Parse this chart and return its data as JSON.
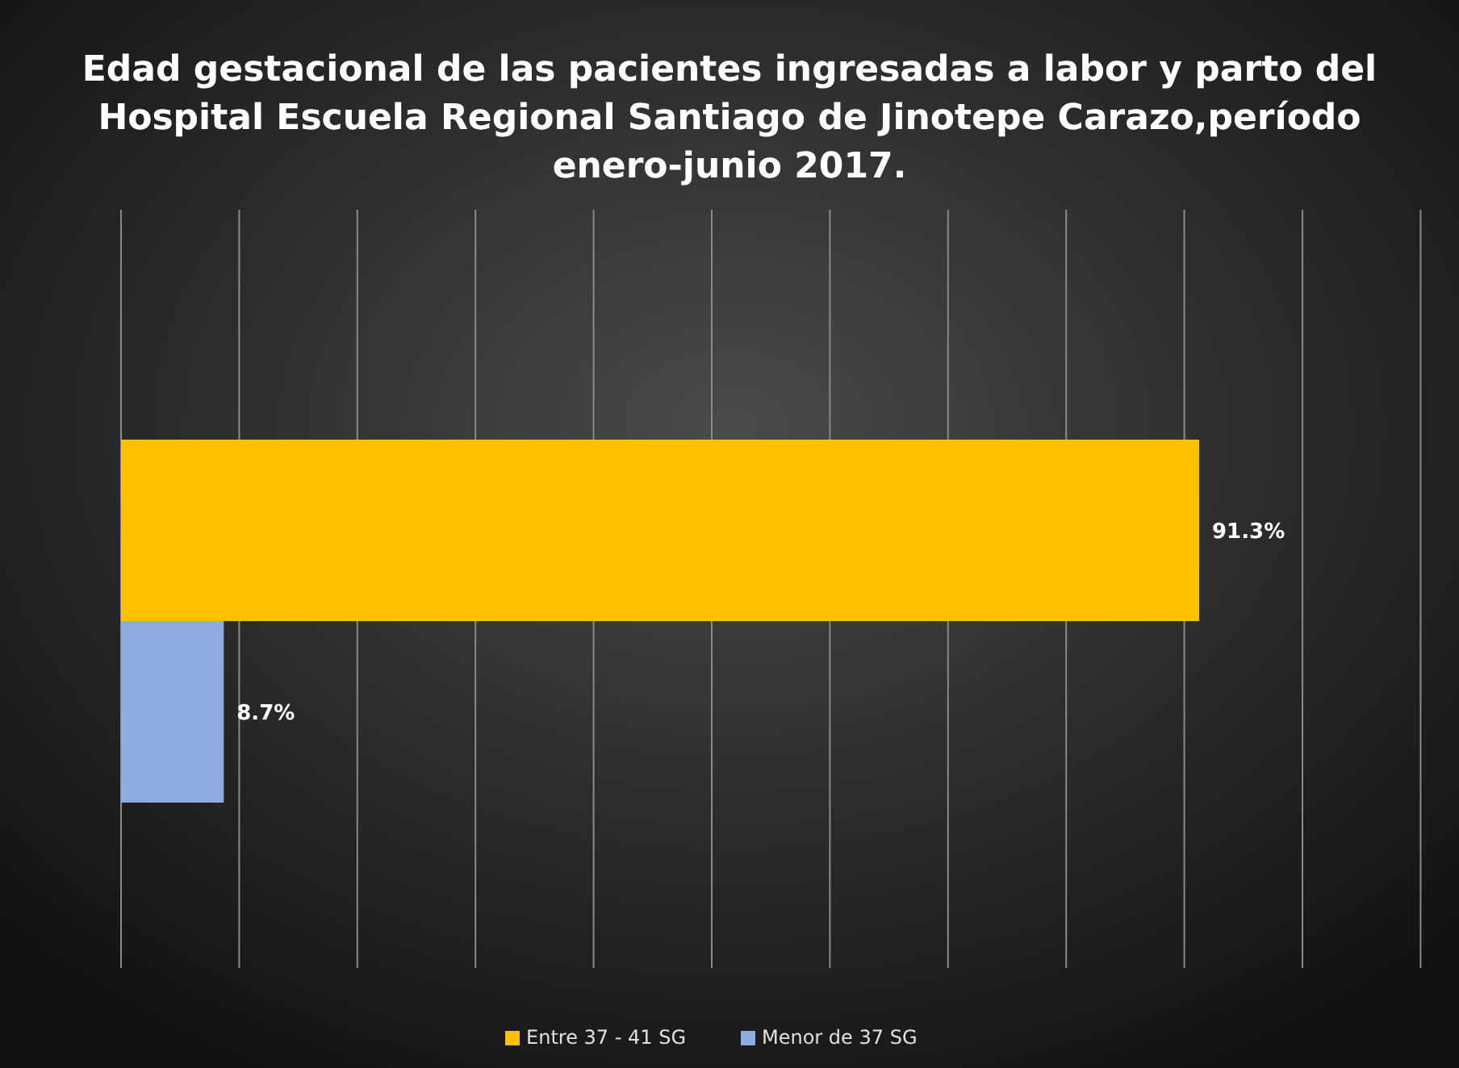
{
  "chart_data": {
    "type": "bar",
    "orientation": "horizontal",
    "title": "Edad gestacional de las pacientes ingresadas a labor y parto del Hospital Escuela Regional Santiago de Jinotepe Carazo,período enero-junio 2017.",
    "categories": [
      null
    ],
    "series": [
      {
        "name": "Entre 37 - 41 SG",
        "color": "#ffc000",
        "values": [
          91.3
        ],
        "value_labels": [
          "91.3%"
        ]
      },
      {
        "name": "Menor de 37 SG",
        "color": "#8faadc",
        "values": [
          8.7
        ],
        "value_labels": [
          "8.7%"
        ]
      }
    ],
    "grid": "x",
    "legend": "bottom"
  }
}
